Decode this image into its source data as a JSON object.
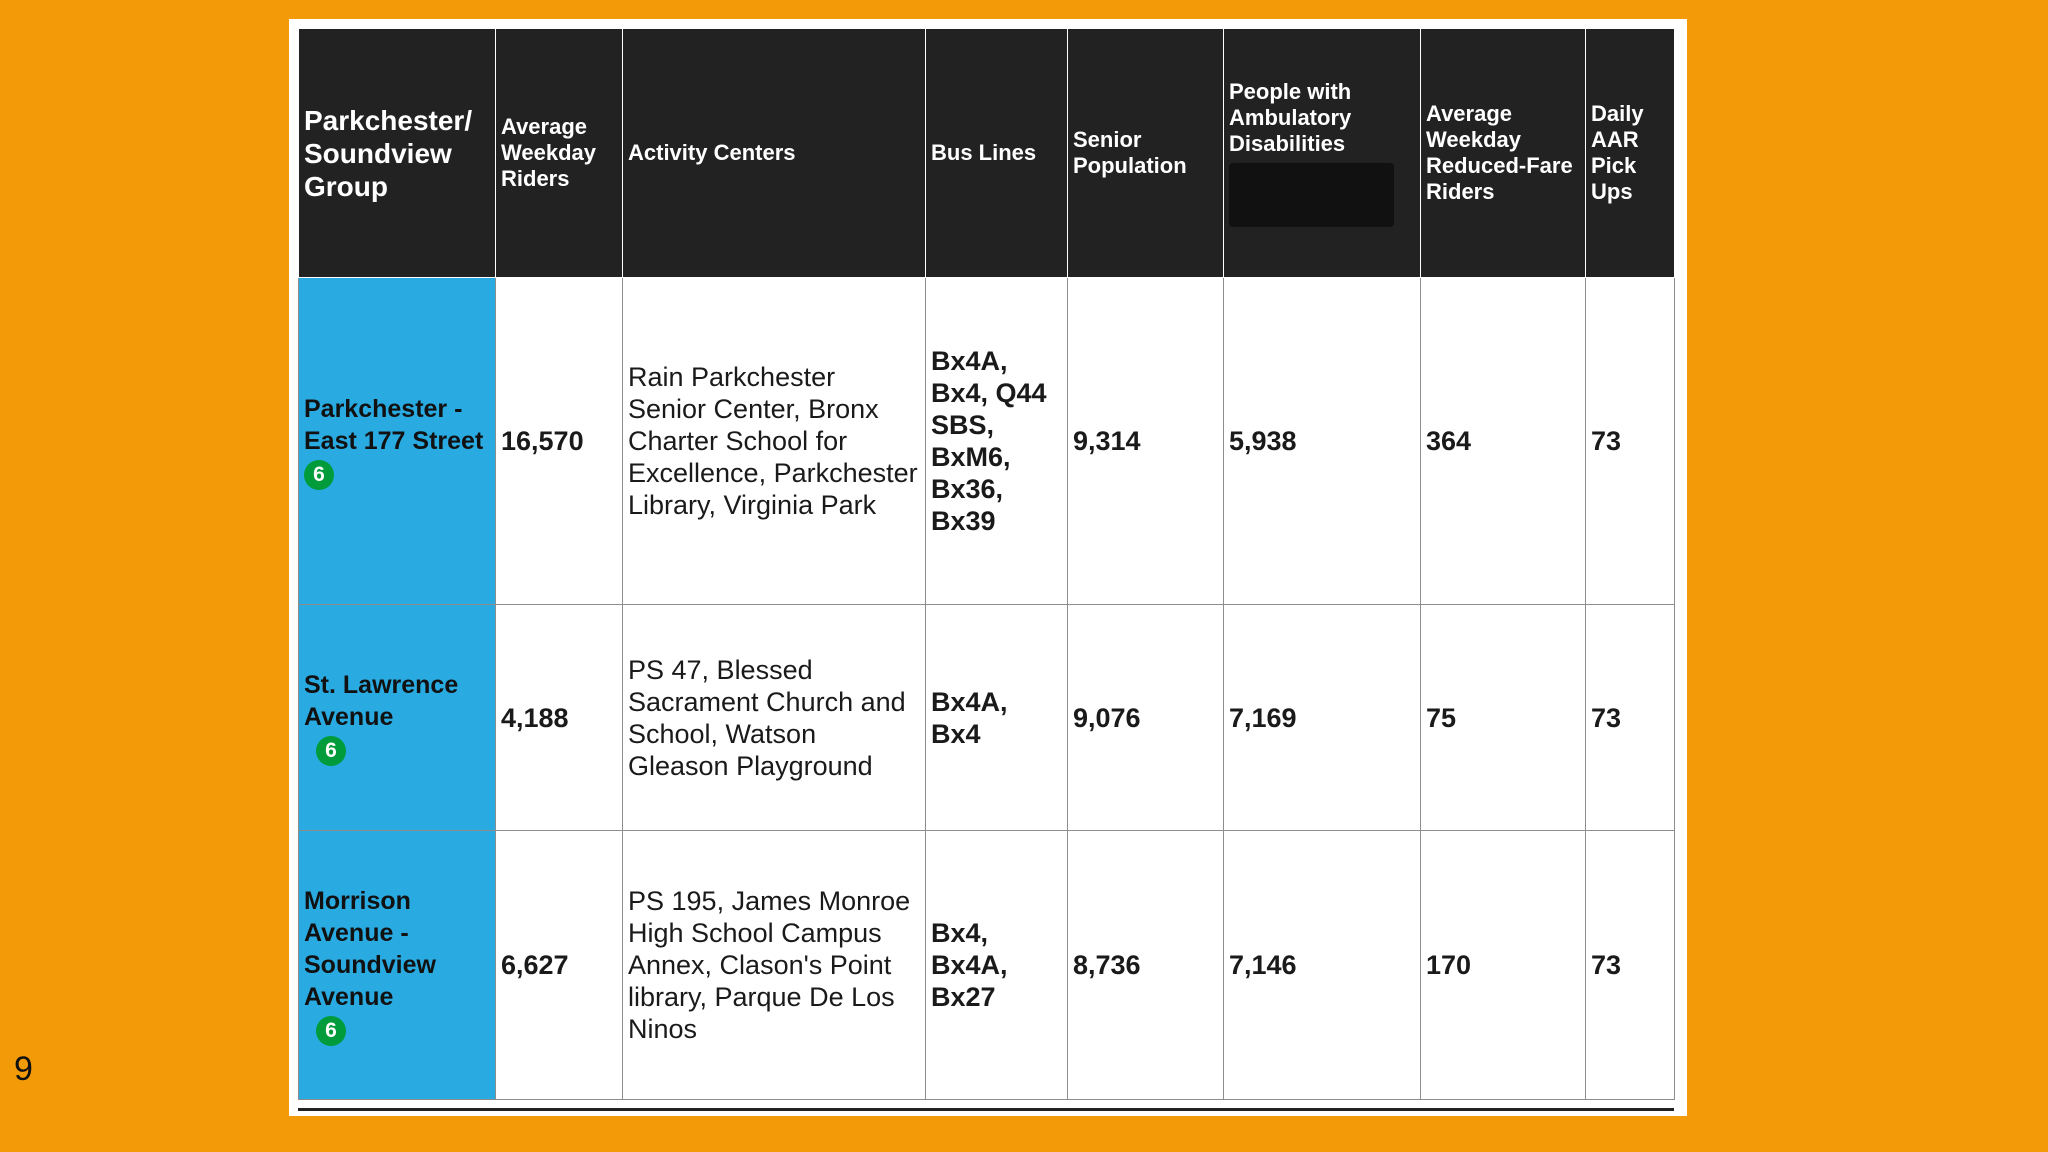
{
  "slide": {
    "page_number": "9"
  },
  "colors": {
    "background": "#f39a09",
    "header_bg": "#222222",
    "station_bg": "#29abe2",
    "route_bullet": "#009b3a"
  },
  "table": {
    "headers": {
      "group": "Parkchester/ Soundview Group",
      "riders": "Average Weekday Riders",
      "activity": "Activity Centers",
      "bus": "Bus Lines",
      "senior": "Senior Population",
      "ambulatory": "People with Ambulatory Disabilities",
      "reduced": "Average Weekday Reduced-Fare Riders",
      "aar": "Daily AAR Pick Ups"
    },
    "rows": [
      {
        "station": "Parkchester - East 177 Street",
        "route": "6",
        "riders": "16,570",
        "activity": "Rain Parkchester Senior Center, Bronx Charter School for Excellence, Parkchester Library, Virginia Park",
        "bus": "Bx4A, Bx4, Q44 SBS, BxM6, Bx36, Bx39",
        "senior": "9,314",
        "ambulatory": "5,938",
        "reduced": "364",
        "aar": "73"
      },
      {
        "station": "St. Lawrence Avenue",
        "route": "6",
        "riders": "4,188",
        "activity": "PS 47, Blessed Sacrament Church and School, Watson Gleason Playground",
        "bus": "Bx4A, Bx4",
        "senior": "9,076",
        "ambulatory": "7,169",
        "reduced": "75",
        "aar": "73"
      },
      {
        "station": "Morrison Avenue - Soundview Avenue",
        "route": "6",
        "riders": "6,627",
        "activity": "PS 195, James Monroe High School Campus Annex, Clason's Point library, Parque De Los Ninos",
        "bus": "Bx4, Bx4A, Bx27",
        "senior": "8,736",
        "ambulatory": "7,146",
        "reduced": "170",
        "aar": "73"
      }
    ]
  }
}
